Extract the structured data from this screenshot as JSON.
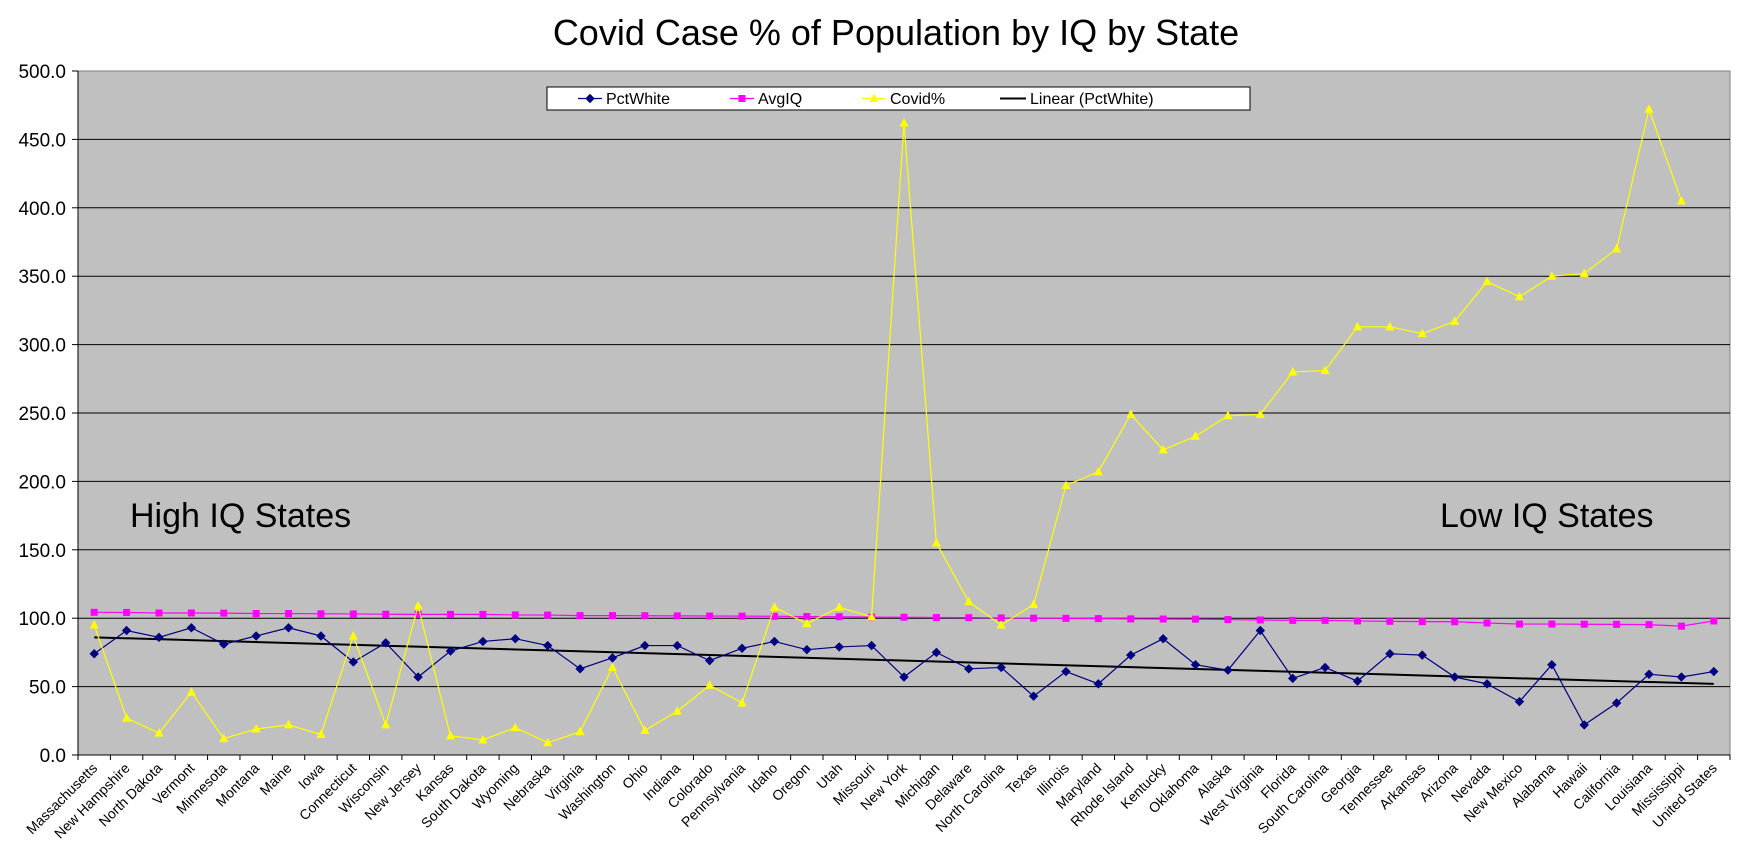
{
  "chart_data": {
    "type": "line",
    "title": "Covid Case % of Population by IQ by State",
    "xlabel": "",
    "ylabel": "",
    "ylim": [
      0,
      500
    ],
    "y_ticks": [
      "0.0",
      "50.0",
      "100.0",
      "150.0",
      "200.0",
      "250.0",
      "300.0",
      "350.0",
      "400.0",
      "450.0",
      "500.0"
    ],
    "grid": true,
    "legend_position": "top-center",
    "background_color": "#c0c0c0",
    "categories": [
      "Massachusetts",
      "New Hampshire",
      "North Dakota",
      "Vermont",
      "Minnesota",
      "Montana",
      "Maine",
      "Iowa",
      "Connecticut",
      "Wisconsin",
      "New Jersey",
      "Kansas",
      "South Dakota",
      "Wyoming",
      "Nebraska",
      "Virginia",
      "Washington",
      "Ohio",
      "Indiana",
      "Colorado",
      "Pennsylvania",
      "Idaho",
      "Oregon",
      "Utah",
      "Missouri",
      "New York",
      "Michigan",
      "Delaware",
      "North Carolina",
      "Texas",
      "Illinois",
      "Maryland",
      "Rhode Island",
      "Kentucky",
      "Oklahoma",
      "Alaska",
      "West Virginia",
      "Florida",
      "South Carolina",
      "Georgia",
      "Tennessee",
      "Arkansas",
      "Arizona",
      "Nevada",
      "New Mexico",
      "Alabama",
      "Hawaii",
      "California",
      "Louisiana",
      "Mississippi",
      "United States"
    ],
    "series": [
      {
        "name": "PctWhite",
        "color": "#000080",
        "marker": "diamond",
        "values": [
          74,
          91,
          86,
          93,
          81,
          87,
          93,
          87,
          68,
          82,
          57,
          76,
          83,
          85,
          80,
          63,
          71,
          80,
          80,
          69,
          78,
          83,
          77,
          79,
          80,
          57,
          75,
          63,
          64,
          43,
          61,
          52,
          73,
          85,
          66,
          62,
          91,
          56,
          64,
          54,
          74,
          73,
          57,
          52,
          39,
          66,
          22,
          38,
          59,
          57,
          61
        ]
      },
      {
        "name": "AvgIQ",
        "color": "#ff00ff",
        "marker": "square",
        "values": [
          104.3,
          104.2,
          103.8,
          103.8,
          103.7,
          103.4,
          103.4,
          103.2,
          103.1,
          102.9,
          102.8,
          102.8,
          102.8,
          102.4,
          102.3,
          101.9,
          101.9,
          101.8,
          101.7,
          101.6,
          101.5,
          101.4,
          101.2,
          101.1,
          100.8,
          100.7,
          100.5,
          100.4,
          100.2,
          100.0,
          99.9,
          99.7,
          99.5,
          99.4,
          99.3,
          99.0,
          98.7,
          98.4,
          98.4,
          98.0,
          97.7,
          97.5,
          97.4,
          96.5,
          95.7,
          95.7,
          95.6,
          95.5,
          95.3,
          94.2,
          98.0
        ]
      },
      {
        "name": "Covid%",
        "color": "#ffff00",
        "marker": "triangle",
        "values": [
          95,
          27,
          16,
          46,
          12,
          19,
          22,
          15,
          87,
          22,
          109,
          14,
          11,
          20,
          9,
          17,
          64,
          18,
          32,
          51,
          38,
          108,
          96,
          108,
          101,
          462,
          155,
          112,
          95,
          110,
          197,
          207,
          249,
          223,
          233,
          248,
          249,
          280,
          281,
          313,
          313,
          308,
          317,
          346,
          335,
          350,
          352,
          370,
          472,
          405,
          null
        ]
      },
      {
        "name": "Linear (PctWhite)",
        "color": "#000000",
        "marker": "none",
        "trend_start": 86,
        "trend_end": 52
      }
    ]
  },
  "annotations": {
    "left": "High IQ States",
    "right": "Low IQ States"
  }
}
